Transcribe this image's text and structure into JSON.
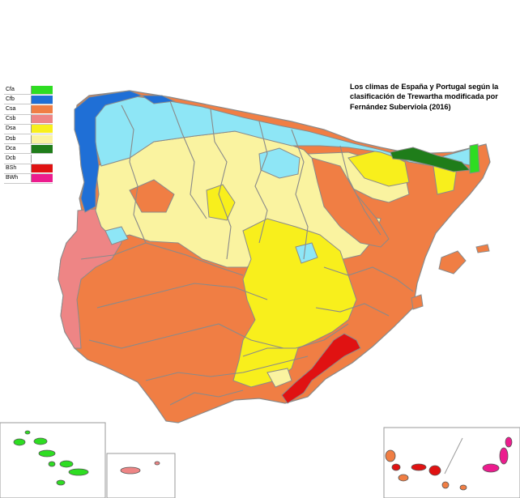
{
  "title": "Los climas de España y Portugal según la clasificación de Trewartha modificada por Fernández Suberviola (2016)",
  "legend": [
    {
      "code": "Cfa",
      "color": "#2edd22"
    },
    {
      "code": "Cfb",
      "color": "#1f6fd6"
    },
    {
      "code": "Csa",
      "color": "#f07e44"
    },
    {
      "code": "Csb",
      "color": "#ee8585"
    },
    {
      "code": "Dsa",
      "color": "#f8ef1c"
    },
    {
      "code": "Dsb",
      "color": "#faf3a0"
    },
    {
      "code": "Dca",
      "color": "#1f7d1a"
    },
    {
      "code": "Dcb",
      "color": "#ffffff"
    },
    {
      "code": "BSh",
      "color": "#e01212"
    },
    {
      "code": "BWh",
      "color": "#ec1c8e"
    }
  ],
  "colors": {
    "humid_subtropical_cfa": "#2edd22",
    "oceanic_cfb": "#1f6fd6",
    "light_cyan_region": "#8ee6f6",
    "mediterranean_csa": "#f07e44",
    "mediterranean_csb": "#ee8585",
    "dsa": "#f8ef1c",
    "dsb": "#faf3a0",
    "dca": "#1f7d1a",
    "bsh": "#e01212",
    "bwh": "#ec1c8e",
    "borders": "#8a8a8a"
  },
  "insets": [
    "Azores",
    "Madeira",
    "Canarias"
  ]
}
